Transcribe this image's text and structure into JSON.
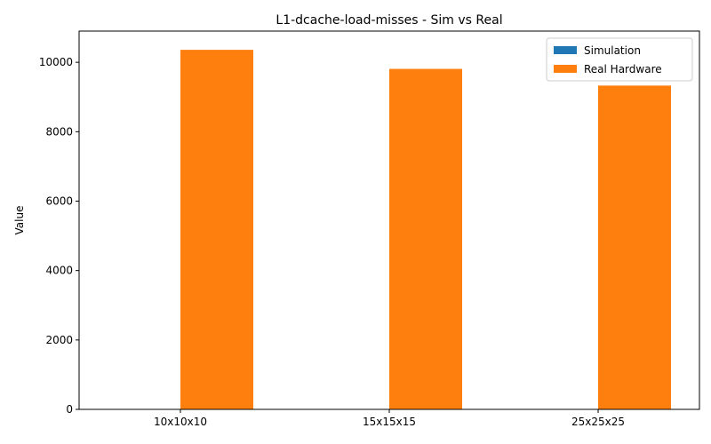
{
  "chart_data": {
    "type": "bar",
    "title": "L1-dcache-load-misses - Sim vs Real",
    "xlabel": "",
    "ylabel": "Value",
    "categories": [
      "10x10x10",
      "15x15x15",
      "25x25x25"
    ],
    "series": [
      {
        "name": "Simulation",
        "values": [
          0,
          0,
          0
        ],
        "color": "#1f77b4"
      },
      {
        "name": "Real Hardware",
        "values": [
          10360,
          9810,
          9330
        ],
        "color": "#ff7f0e"
      }
    ],
    "ylim": [
      0,
      10900
    ],
    "yticks": [
      0,
      2000,
      4000,
      6000,
      8000,
      10000
    ],
    "grid": false,
    "legend": "top-right"
  }
}
